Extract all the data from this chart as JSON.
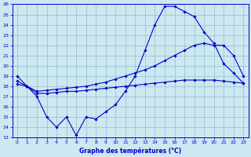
{
  "title": "Graphe des températures (°C)",
  "bg_color": "#cce8f0",
  "grid_color": "#99bbcc",
  "line_color": "#0000cc",
  "spine_color": "#0000cc",
  "xlim": [
    -0.5,
    23.5
  ],
  "ylim": [
    13,
    26
  ],
  "xticks": [
    0,
    1,
    2,
    3,
    4,
    5,
    6,
    7,
    8,
    9,
    10,
    11,
    12,
    13,
    14,
    15,
    16,
    17,
    18,
    19,
    20,
    21,
    22,
    23
  ],
  "yticks": [
    13,
    14,
    15,
    16,
    17,
    18,
    19,
    20,
    21,
    22,
    23,
    24,
    25,
    26
  ],
  "line1_x": [
    0,
    1,
    2,
    3,
    4,
    5,
    6,
    7,
    8,
    9,
    10,
    11,
    12,
    13,
    14,
    15,
    16,
    17,
    18,
    19,
    20,
    21,
    22,
    23
  ],
  "line1_y": [
    19.0,
    18.0,
    17.0,
    15.0,
    14.0,
    15.0,
    13.2,
    15.0,
    14.8,
    15.5,
    16.2,
    17.5,
    19.0,
    21.5,
    24.0,
    25.8,
    25.8,
    25.3,
    24.8,
    23.3,
    22.2,
    20.2,
    19.3,
    18.3
  ],
  "line2_x": [
    0,
    1,
    2,
    3,
    4,
    5,
    6,
    7,
    8,
    9,
    10,
    11,
    12,
    13,
    14,
    15,
    16,
    17,
    18,
    19,
    20,
    21,
    22,
    23
  ],
  "line2_y": [
    18.5,
    18.0,
    17.5,
    17.6,
    17.7,
    17.8,
    17.9,
    18.0,
    18.2,
    18.4,
    18.7,
    19.0,
    19.3,
    19.6,
    20.0,
    20.5,
    21.0,
    21.5,
    22.0,
    22.2,
    22.0,
    22.0,
    21.0,
    19.0
  ],
  "line3_x": [
    0,
    1,
    2,
    3,
    4,
    5,
    6,
    7,
    8,
    9,
    10,
    11,
    12,
    13,
    14,
    15,
    16,
    17,
    18,
    19,
    20,
    21,
    22,
    23
  ],
  "line3_y": [
    18.2,
    18.0,
    17.3,
    17.3,
    17.4,
    17.5,
    17.5,
    17.6,
    17.7,
    17.8,
    17.9,
    18.0,
    18.1,
    18.2,
    18.3,
    18.4,
    18.5,
    18.6,
    18.6,
    18.6,
    18.6,
    18.5,
    18.4,
    18.3
  ]
}
